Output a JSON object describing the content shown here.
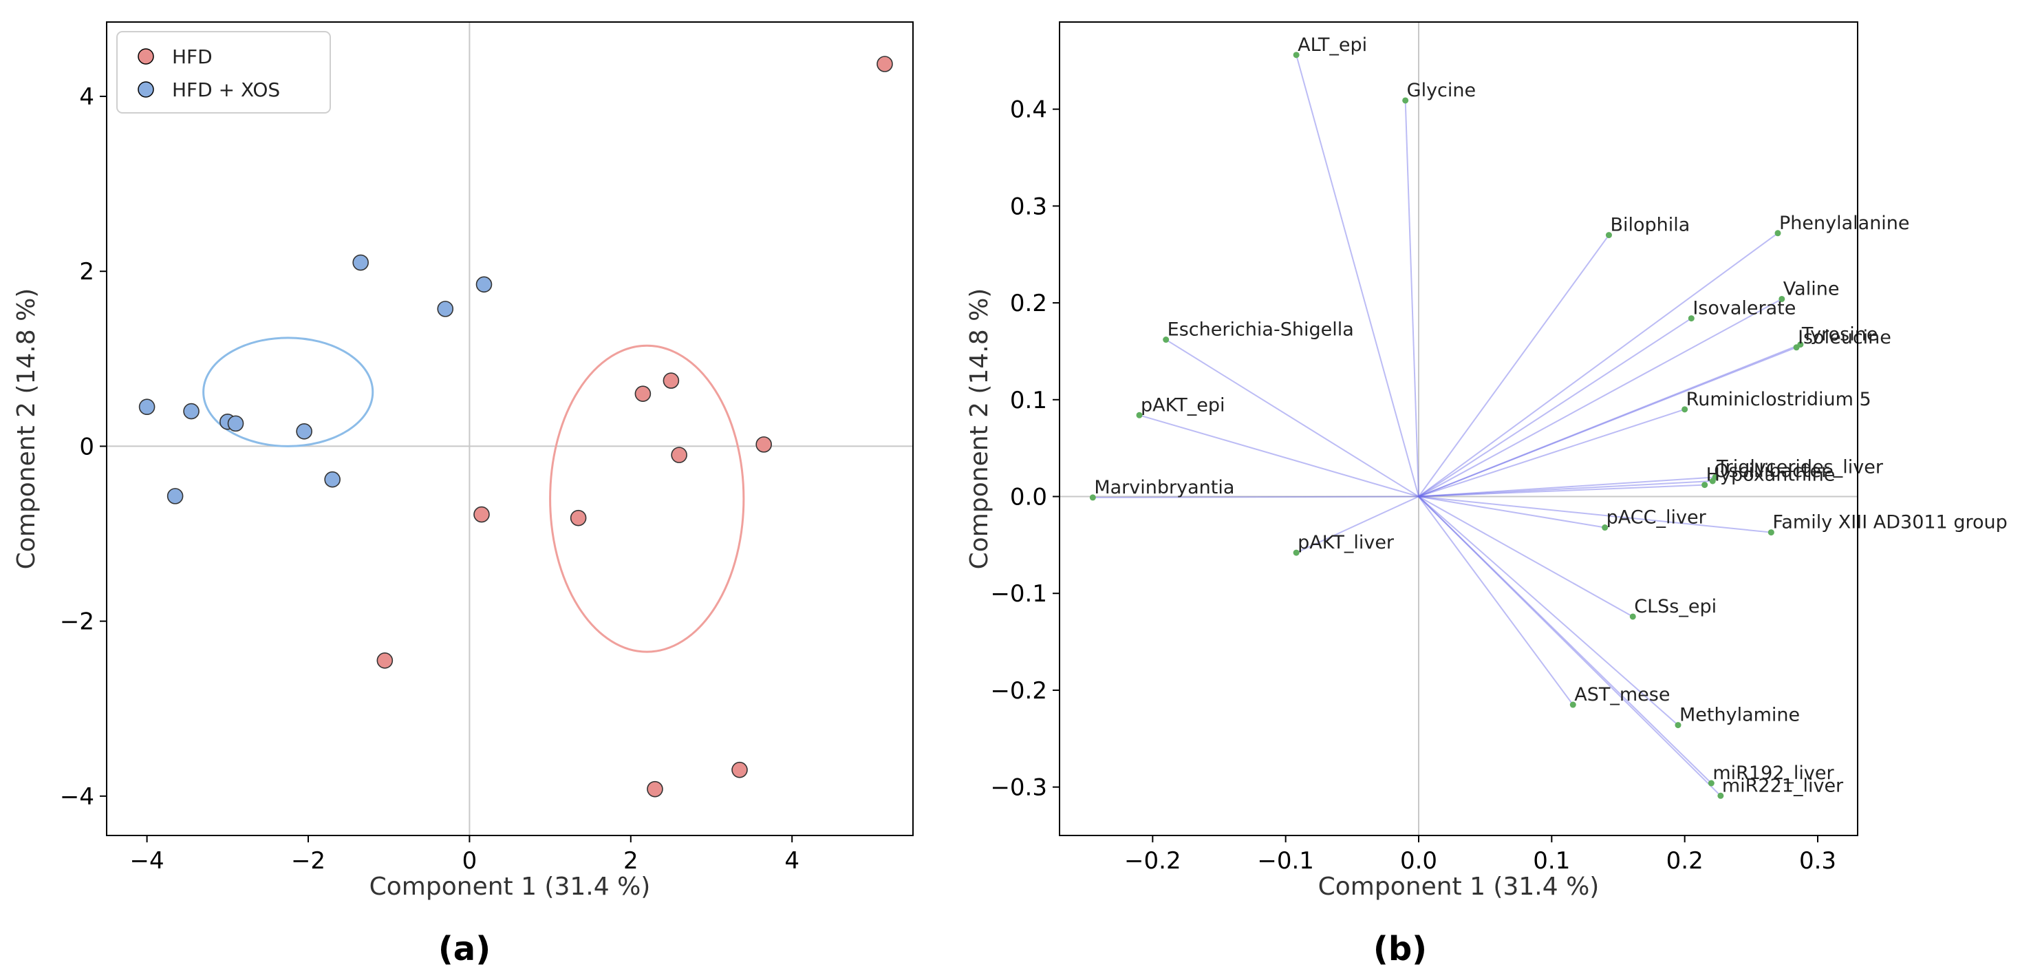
{
  "chart_data": [
    {
      "type": "scatter",
      "panel_label": "(a)",
      "xlabel": "Component 1 (31.4 %)",
      "ylabel": "Component 2 (14.8 %)",
      "xlim": [
        -4.5,
        5.5
      ],
      "ylim": [
        -4.45,
        4.85
      ],
      "xticks": [
        -4,
        -2,
        0,
        2,
        4
      ],
      "yticks": [
        -4,
        -2,
        0,
        2,
        4
      ],
      "xtick_labels": [
        "−4",
        "−2",
        "0",
        "2",
        "4"
      ],
      "ytick_labels": [
        "−4",
        "−2",
        "0",
        "2",
        "4"
      ],
      "grid": false,
      "legend_position": "top-left",
      "series": [
        {
          "name": "HFD",
          "color": "#e8908e",
          "points": [
            [
              5.15,
              4.37
            ],
            [
              2.15,
              0.6
            ],
            [
              2.5,
              0.75
            ],
            [
              2.6,
              -0.1
            ],
            [
              3.65,
              0.02
            ],
            [
              0.15,
              -0.78
            ],
            [
              1.35,
              -0.82
            ],
            [
              -1.05,
              -2.45
            ],
            [
              2.3,
              -3.92
            ],
            [
              3.35,
              -3.7
            ]
          ]
        },
        {
          "name": "HFD + XOS",
          "color": "#8aaee0",
          "points": [
            [
              -1.35,
              2.1
            ],
            [
              0.18,
              1.85
            ],
            [
              -0.3,
              1.57
            ],
            [
              -4.0,
              0.45
            ],
            [
              -3.45,
              0.4
            ],
            [
              -3.0,
              0.28
            ],
            [
              -2.9,
              0.26
            ],
            [
              -2.05,
              0.17
            ],
            [
              -1.7,
              -0.38
            ],
            [
              -3.65,
              -0.57
            ]
          ]
        }
      ],
      "ellipses": [
        {
          "series": "HFD + XOS",
          "color": "#8cbce8",
          "center": [
            -2.25,
            0.62
          ],
          "radii": [
            1.05,
            0.62
          ]
        },
        {
          "series": "HFD",
          "color": "#f0a09c",
          "center": [
            2.2,
            -0.6
          ],
          "radii": [
            1.2,
            1.75
          ]
        }
      ]
    },
    {
      "type": "biplot",
      "panel_label": "(b)",
      "xlabel": "Component 1 (31.4 %)",
      "ylabel": "Component 2 (14.8 %)",
      "xlim": [
        -0.27,
        0.33
      ],
      "ylim": [
        -0.35,
        0.49
      ],
      "xticks": [
        -0.2,
        -0.1,
        0.0,
        0.1,
        0.2,
        0.3
      ],
      "yticks": [
        -0.3,
        -0.2,
        -0.1,
        0.0,
        0.1,
        0.2,
        0.3,
        0.4
      ],
      "xtick_labels": [
        "−0.2",
        "−0.1",
        "0.0",
        "0.1",
        "0.2",
        "0.3"
      ],
      "ytick_labels": [
        "−0.3",
        "−0.2",
        "−0.1",
        "0.0",
        "0.1",
        "0.2",
        "0.3",
        "0.4"
      ],
      "grid": false,
      "arrow_color": "#6a6ae8",
      "point_color": "#5fae5f",
      "vectors": [
        {
          "label": "ALT_epi",
          "x": -0.092,
          "y": 0.456
        },
        {
          "label": "Glycine",
          "x": -0.01,
          "y": 0.409
        },
        {
          "label": "Bilophila",
          "x": 0.143,
          "y": 0.27
        },
        {
          "label": "Phenylalanine",
          "x": 0.27,
          "y": 0.272
        },
        {
          "label": "Valine",
          "x": 0.273,
          "y": 0.204
        },
        {
          "label": "Isovalerate",
          "x": 0.205,
          "y": 0.184
        },
        {
          "label": "Tyrosine",
          "x": 0.287,
          "y": 0.157
        },
        {
          "label": "Isoleucine",
          "x": 0.284,
          "y": 0.154
        },
        {
          "label": "Escherichia-Shigella",
          "x": -0.19,
          "y": 0.162
        },
        {
          "label": "pAKT_epi",
          "x": -0.21,
          "y": 0.084
        },
        {
          "label": "Ruminiclostridium 5",
          "x": 0.2,
          "y": 0.09
        },
        {
          "label": "Triglycerides_liver",
          "x": 0.223,
          "y": 0.02
        },
        {
          "label": "Oscillibacter",
          "x": 0.221,
          "y": 0.016
        },
        {
          "label": "Hypoxanthine",
          "x": 0.215,
          "y": 0.012
        },
        {
          "label": "Marvinbryantia",
          "x": -0.245,
          "y": -0.001
        },
        {
          "label": "pACC_liver",
          "x": 0.14,
          "y": -0.032
        },
        {
          "label": "Family XIII AD3011 group",
          "x": 0.265,
          "y": -0.037
        },
        {
          "label": "pAKT_liver",
          "x": -0.092,
          "y": -0.058
        },
        {
          "label": "CLSs_epi",
          "x": 0.161,
          "y": -0.124
        },
        {
          "label": "AST_mese",
          "x": 0.116,
          "y": -0.215
        },
        {
          "label": "Methylamine",
          "x": 0.195,
          "y": -0.236
        },
        {
          "label": "miR192_liver",
          "x": 0.22,
          "y": -0.296
        },
        {
          "label": "miR221_liver",
          "x": 0.227,
          "y": -0.309
        }
      ]
    }
  ]
}
